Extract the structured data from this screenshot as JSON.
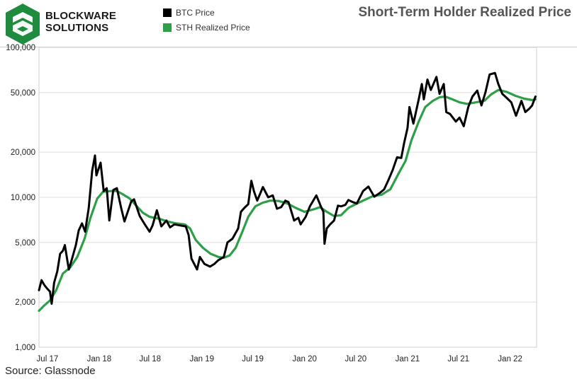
{
  "logo": {
    "line1": "BLOCKWARE",
    "line2": "SOLUTIONS",
    "color": "#1f8b3e"
  },
  "legend": [
    {
      "label": "BTC Price",
      "color": "#000000"
    },
    {
      "label": "STH Realized Price",
      "color": "#2e9e48"
    }
  ],
  "title": "Short-Term Holder Realized Price",
  "source": "Source: Glassnode",
  "chart_data": {
    "type": "line",
    "title": "Short-Term Holder Realized Price",
    "xlabel": "",
    "ylabel": "",
    "y_scale": "log",
    "ylim": [
      1000,
      100000
    ],
    "grid": true,
    "legend_position": "top-left",
    "x_range": [
      "2017-06-01",
      "2022-04-05"
    ],
    "x_ticks": [
      {
        "label": "Jul 17",
        "date": "2017-07-01"
      },
      {
        "label": "Jan 18",
        "date": "2018-01-01"
      },
      {
        "label": "Jul 18",
        "date": "2018-07-01"
      },
      {
        "label": "Jan 19",
        "date": "2019-01-01"
      },
      {
        "label": "Jul 19",
        "date": "2019-07-01"
      },
      {
        "label": "Jan 20",
        "date": "2020-01-01"
      },
      {
        "label": "Jul 20",
        "date": "2020-07-01"
      },
      {
        "label": "Jan 21",
        "date": "2021-01-01"
      },
      {
        "label": "Jul 21",
        "date": "2021-07-01"
      },
      {
        "label": "Jan 22",
        "date": "2022-01-01"
      }
    ],
    "y_ticks": [
      {
        "label": "1,000",
        "value": 1000
      },
      {
        "label": "2,000",
        "value": 2000
      },
      {
        "label": "5,000",
        "value": 5000
      },
      {
        "label": "10,000",
        "value": 10000
      },
      {
        "label": "20,000",
        "value": 20000
      },
      {
        "label": "50,000",
        "value": 50000
      },
      {
        "label": "100,000",
        "value": 100000
      }
    ],
    "series": [
      {
        "name": "BTC Price",
        "color": "#000000",
        "points": [
          [
            "2017-06-01",
            2400
          ],
          [
            "2017-06-10",
            2800
          ],
          [
            "2017-06-20",
            2600
          ],
          [
            "2017-07-01",
            2450
          ],
          [
            "2017-07-10",
            2350
          ],
          [
            "2017-07-16",
            1950
          ],
          [
            "2017-07-25",
            2700
          ],
          [
            "2017-08-05",
            3200
          ],
          [
            "2017-08-15",
            4200
          ],
          [
            "2017-08-25",
            4400
          ],
          [
            "2017-09-01",
            4800
          ],
          [
            "2017-09-15",
            3300
          ],
          [
            "2017-09-25",
            3800
          ],
          [
            "2017-10-10",
            4800
          ],
          [
            "2017-10-20",
            6000
          ],
          [
            "2017-11-01",
            6700
          ],
          [
            "2017-11-12",
            5900
          ],
          [
            "2017-11-25",
            8500
          ],
          [
            "2017-12-07",
            15000
          ],
          [
            "2017-12-17",
            19000
          ],
          [
            "2017-12-22",
            14000
          ],
          [
            "2018-01-06",
            17000
          ],
          [
            "2018-01-17",
            11000
          ],
          [
            "2018-01-28",
            11500
          ],
          [
            "2018-02-06",
            7000
          ],
          [
            "2018-02-20",
            11200
          ],
          [
            "2018-03-05",
            11500
          ],
          [
            "2018-03-20",
            8500
          ],
          [
            "2018-04-01",
            6900
          ],
          [
            "2018-04-25",
            9400
          ],
          [
            "2018-05-05",
            9700
          ],
          [
            "2018-05-25",
            7500
          ],
          [
            "2018-06-10",
            6700
          ],
          [
            "2018-06-29",
            5900
          ],
          [
            "2018-07-10",
            6500
          ],
          [
            "2018-07-25",
            8200
          ],
          [
            "2018-08-10",
            6400
          ],
          [
            "2018-08-28",
            7000
          ],
          [
            "2018-09-10",
            6300
          ],
          [
            "2018-09-25",
            6600
          ],
          [
            "2018-10-15",
            6500
          ],
          [
            "2018-11-05",
            6400
          ],
          [
            "2018-11-15",
            5600
          ],
          [
            "2018-11-25",
            3900
          ],
          [
            "2018-12-15",
            3300
          ],
          [
            "2018-12-25",
            4000
          ],
          [
            "2019-01-10",
            3600
          ],
          [
            "2019-01-30",
            3450
          ],
          [
            "2019-02-15",
            3600
          ],
          [
            "2019-02-28",
            3800
          ],
          [
            "2019-03-20",
            4000
          ],
          [
            "2019-04-02",
            5000
          ],
          [
            "2019-04-20",
            5300
          ],
          [
            "2019-05-10",
            6200
          ],
          [
            "2019-05-20",
            8000
          ],
          [
            "2019-06-01",
            8500
          ],
          [
            "2019-06-15",
            9000
          ],
          [
            "2019-06-26",
            12900
          ],
          [
            "2019-07-05",
            11000
          ],
          [
            "2019-07-17",
            9500
          ],
          [
            "2019-08-06",
            11700
          ],
          [
            "2019-08-25",
            10000
          ],
          [
            "2019-09-10",
            10300
          ],
          [
            "2019-09-25",
            8400
          ],
          [
            "2019-10-10",
            8600
          ],
          [
            "2019-10-25",
            9500
          ],
          [
            "2019-11-05",
            9300
          ],
          [
            "2019-11-25",
            7000
          ],
          [
            "2019-12-10",
            7300
          ],
          [
            "2019-12-18",
            6600
          ],
          [
            "2020-01-05",
            7400
          ],
          [
            "2020-01-20",
            8700
          ],
          [
            "2020-02-12",
            10300
          ],
          [
            "2020-02-28",
            8700
          ],
          [
            "2020-03-08",
            8000
          ],
          [
            "2020-03-12",
            4900
          ],
          [
            "2020-03-20",
            6200
          ],
          [
            "2020-04-01",
            6600
          ],
          [
            "2020-04-15",
            7000
          ],
          [
            "2020-04-29",
            8800
          ],
          [
            "2020-05-10",
            8700
          ],
          [
            "2020-05-25",
            8900
          ],
          [
            "2020-06-05",
            9600
          ],
          [
            "2020-06-20",
            9300
          ],
          [
            "2020-07-05",
            9100
          ],
          [
            "2020-07-27",
            11000
          ],
          [
            "2020-08-15",
            11800
          ],
          [
            "2020-09-05",
            10100
          ],
          [
            "2020-09-25",
            10700
          ],
          [
            "2020-10-10",
            11300
          ],
          [
            "2020-10-25",
            13000
          ],
          [
            "2020-11-10",
            15300
          ],
          [
            "2020-11-25",
            18500
          ],
          [
            "2020-12-10",
            18300
          ],
          [
            "2020-12-20",
            23000
          ],
          [
            "2021-01-01",
            29000
          ],
          [
            "2021-01-08",
            40000
          ],
          [
            "2021-01-22",
            31000
          ],
          [
            "2021-02-10",
            45000
          ],
          [
            "2021-02-21",
            57000
          ],
          [
            "2021-02-28",
            45000
          ],
          [
            "2021-03-13",
            61000
          ],
          [
            "2021-03-25",
            52000
          ],
          [
            "2021-04-14",
            63500
          ],
          [
            "2021-04-25",
            49000
          ],
          [
            "2021-05-10",
            57000
          ],
          [
            "2021-05-19",
            37000
          ],
          [
            "2021-06-01",
            36000
          ],
          [
            "2021-06-22",
            32000
          ],
          [
            "2021-07-05",
            34000
          ],
          [
            "2021-07-20",
            29800
          ],
          [
            "2021-08-05",
            40000
          ],
          [
            "2021-08-20",
            47000
          ],
          [
            "2021-09-06",
            51500
          ],
          [
            "2021-09-21",
            41000
          ],
          [
            "2021-10-05",
            50000
          ],
          [
            "2021-10-20",
            66000
          ],
          [
            "2021-11-08",
            67500
          ],
          [
            "2021-11-20",
            57000
          ],
          [
            "2021-12-04",
            49000
          ],
          [
            "2021-12-20",
            46000
          ],
          [
            "2022-01-05",
            43000
          ],
          [
            "2022-01-22",
            35000
          ],
          [
            "2022-02-10",
            44000
          ],
          [
            "2022-02-24",
            37000
          ],
          [
            "2022-03-10",
            39000
          ],
          [
            "2022-03-20",
            41000
          ],
          [
            "2022-04-01",
            47000
          ]
        ]
      },
      {
        "name": "STH Realized Price",
        "color": "#2e9e48",
        "points": [
          [
            "2017-06-01",
            1750
          ],
          [
            "2017-06-20",
            1900
          ],
          [
            "2017-07-10",
            2050
          ],
          [
            "2017-08-01",
            2400
          ],
          [
            "2017-08-25",
            3100
          ],
          [
            "2017-09-20",
            3400
          ],
          [
            "2017-10-15",
            4000
          ],
          [
            "2017-11-10",
            5300
          ],
          [
            "2017-12-01",
            7300
          ],
          [
            "2017-12-25",
            9800
          ],
          [
            "2018-01-15",
            10900
          ],
          [
            "2018-02-10",
            11000
          ],
          [
            "2018-03-05",
            11000
          ],
          [
            "2018-03-25",
            10500
          ],
          [
            "2018-04-20",
            9800
          ],
          [
            "2018-05-15",
            8700
          ],
          [
            "2018-06-05",
            7900
          ],
          [
            "2018-06-30",
            7400
          ],
          [
            "2018-08-01",
            7200
          ],
          [
            "2018-09-01",
            6900
          ],
          [
            "2018-10-01",
            6700
          ],
          [
            "2018-11-01",
            6600
          ],
          [
            "2018-11-20",
            6200
          ],
          [
            "2018-12-10",
            5200
          ],
          [
            "2019-01-05",
            4600
          ],
          [
            "2019-02-01",
            4200
          ],
          [
            "2019-03-01",
            4000
          ],
          [
            "2019-03-20",
            3950
          ],
          [
            "2019-04-10",
            4100
          ],
          [
            "2019-05-01",
            4600
          ],
          [
            "2019-05-25",
            5900
          ],
          [
            "2019-06-15",
            7400
          ],
          [
            "2019-07-10",
            8700
          ],
          [
            "2019-08-05",
            9200
          ],
          [
            "2019-09-01",
            9500
          ],
          [
            "2019-10-01",
            9450
          ],
          [
            "2019-11-01",
            9100
          ],
          [
            "2019-12-01",
            8500
          ],
          [
            "2020-01-01",
            8000
          ],
          [
            "2020-02-01",
            8300
          ],
          [
            "2020-02-25",
            8600
          ],
          [
            "2020-03-20",
            8000
          ],
          [
            "2020-04-15",
            7500
          ],
          [
            "2020-05-10",
            7600
          ],
          [
            "2020-06-05",
            8500
          ],
          [
            "2020-07-01",
            9000
          ],
          [
            "2020-08-01",
            9600
          ],
          [
            "2020-09-01",
            10200
          ],
          [
            "2020-10-01",
            10400
          ],
          [
            "2020-11-01",
            11300
          ],
          [
            "2020-12-01",
            14500
          ],
          [
            "2020-12-25",
            17500
          ],
          [
            "2021-01-15",
            24000
          ],
          [
            "2021-02-10",
            32000
          ],
          [
            "2021-03-05",
            40000
          ],
          [
            "2021-04-01",
            44000
          ],
          [
            "2021-04-25",
            46500
          ],
          [
            "2021-05-15",
            47000
          ],
          [
            "2021-06-10",
            45000
          ],
          [
            "2021-07-05",
            43000
          ],
          [
            "2021-08-01",
            42000
          ],
          [
            "2021-09-01",
            43000
          ],
          [
            "2021-10-01",
            44000
          ],
          [
            "2021-10-25",
            48500
          ],
          [
            "2021-11-20",
            52000
          ],
          [
            "2021-12-20",
            50500
          ],
          [
            "2022-01-20",
            47500
          ],
          [
            "2022-02-20",
            45500
          ],
          [
            "2022-03-20",
            44500
          ],
          [
            "2022-04-01",
            45000
          ]
        ]
      }
    ]
  }
}
